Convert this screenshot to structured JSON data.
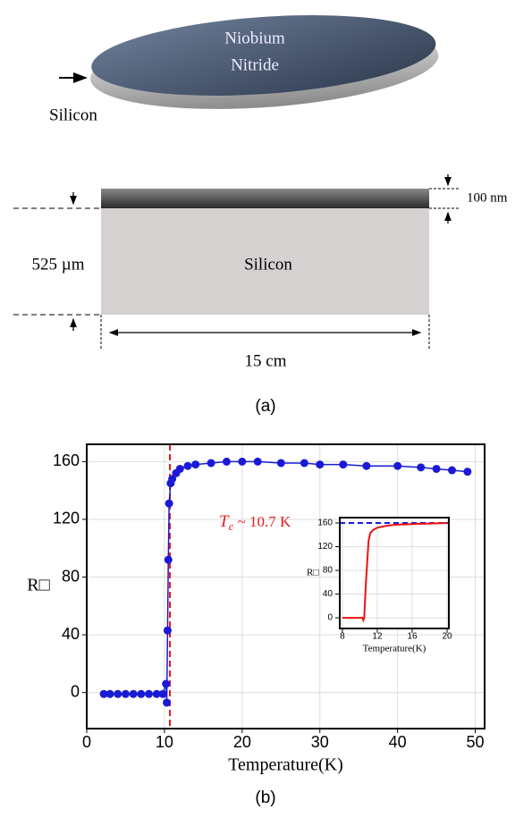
{
  "diagram": {
    "disk_label_1": "Niobium",
    "disk_label_2": "Nitride",
    "disk_substrate": "Silicon",
    "substrate": "Silicon",
    "thickness": "525 µm",
    "film_thickness": "100 nm",
    "width": "15 cm",
    "caption": "(a)"
  },
  "caption_b": "(b)",
  "chart_data": [
    {
      "type": "scatter",
      "x_label": "Temperature(K)",
      "y_label": "R□",
      "x": [
        2.2,
        3,
        4,
        5,
        6,
        7,
        8,
        9,
        9.8,
        10.2,
        10.3,
        10.4,
        10.5,
        10.6,
        10.8,
        11,
        11.5,
        12,
        13,
        14,
        16,
        18,
        20,
        22,
        25,
        28,
        30,
        33,
        36,
        40,
        43,
        45,
        47,
        49
      ],
      "series": [
        {
          "color": "#1a1ad6",
          "values": [
            -1,
            -1,
            -1,
            -1,
            -1,
            -1,
            -1,
            -1,
            -1,
            6,
            -7,
            43,
            92,
            131,
            145,
            148,
            152,
            155,
            157,
            158,
            159,
            160,
            160,
            160,
            159,
            159,
            158,
            158,
            157,
            157,
            156,
            155,
            154,
            153
          ]
        }
      ],
      "xlim": [
        0,
        51.2
      ],
      "ylim": [
        -25,
        172
      ],
      "xticks": [
        0,
        10,
        20,
        30,
        40,
        50
      ],
      "yticks": [
        0,
        40,
        80,
        120,
        160
      ],
      "grid": true,
      "vline": 10.7,
      "vline_color": "#e8191e",
      "annotation": {
        "symbol": "T",
        "subscript": "c",
        "text": " ~  10.7 K"
      }
    },
    {
      "type": "line",
      "x_label": "Temperature(K)",
      "y_label": "R□",
      "x": [
        8,
        9,
        10,
        10.3,
        10.4,
        10.5,
        10.7,
        11,
        11.2,
        11.5,
        12,
        13,
        14,
        16,
        18,
        20
      ],
      "series": [
        {
          "color": "#ee1111",
          "values": [
            0,
            0,
            0,
            0,
            -4,
            0,
            60,
            130,
            143,
            148,
            152,
            155,
            157,
            158,
            159,
            160
          ]
        }
      ],
      "xlim": [
        7.7,
        20.2
      ],
      "ylim": [
        -18,
        169
      ],
      "xticks": [
        8,
        12,
        16,
        20
      ],
      "yticks": [
        0,
        40,
        80,
        120,
        160
      ],
      "grid": true,
      "hline": 160,
      "hline_color": "#1a1ad6"
    }
  ]
}
